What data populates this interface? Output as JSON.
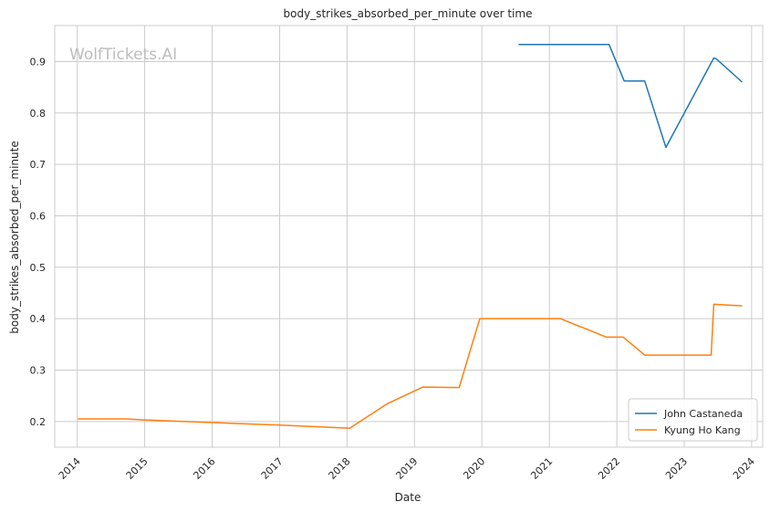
{
  "chart_data": {
    "type": "line",
    "title": "body_strikes_absorbed_per_minute over time",
    "xlabel": "Date",
    "ylabel": "body_strikes_absorbed_per_minute",
    "watermark": "WolfTickets.AI",
    "xlim": [
      "2013-09-01",
      "2024-03-01"
    ],
    "ylim": [
      0.15,
      0.97
    ],
    "x_ticks": [
      "2014",
      "2015",
      "2016",
      "2017",
      "2018",
      "2019",
      "2020",
      "2021",
      "2022",
      "2023",
      "2024"
    ],
    "y_ticks": [
      "0.2",
      "0.3",
      "0.4",
      "0.5",
      "0.6",
      "0.7",
      "0.8",
      "0.9"
    ],
    "grid": true,
    "legend_position": "lower-right",
    "series": [
      {
        "name": "John Castaneda",
        "color": "#1f77b4",
        "points": [
          [
            "2020-07-18",
            0.933
          ],
          [
            "2021-11-20",
            0.933
          ],
          [
            "2022-02-10",
            0.862
          ],
          [
            "2022-06-01",
            0.862
          ],
          [
            "2022-09-24",
            0.733
          ],
          [
            "2023-06-10",
            0.907
          ],
          [
            "2023-06-24",
            0.905
          ],
          [
            "2023-11-11",
            0.86
          ]
        ]
      },
      {
        "name": "Kyung Ho Kang",
        "color": "#ff7f0e",
        "points": [
          [
            "2014-01-04",
            0.205
          ],
          [
            "2014-09-20",
            0.205
          ],
          [
            "2015-01-01",
            0.203
          ],
          [
            "2016-01-01",
            0.198
          ],
          [
            "2017-01-01",
            0.193
          ],
          [
            "2018-01-15",
            0.187
          ],
          [
            "2018-08-04",
            0.234
          ],
          [
            "2019-02-16",
            0.267
          ],
          [
            "2019-08-31",
            0.266
          ],
          [
            "2019-12-21",
            0.4
          ],
          [
            "2021-02-28",
            0.4
          ],
          [
            "2021-11-06",
            0.364
          ],
          [
            "2022-02-05",
            0.364
          ],
          [
            "2022-06-01",
            0.329
          ],
          [
            "2023-05-27",
            0.329
          ],
          [
            "2023-06-10",
            0.428
          ],
          [
            "2023-11-11",
            0.425
          ]
        ]
      }
    ]
  }
}
